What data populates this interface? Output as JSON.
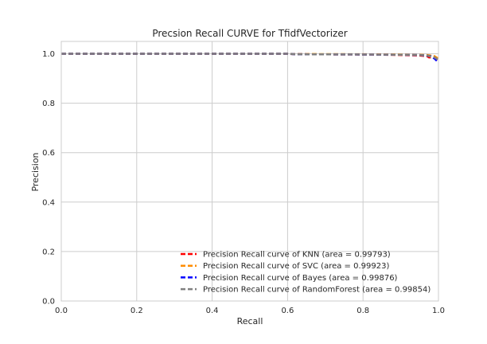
{
  "chart_data": {
    "type": "line",
    "title": "Precsion Recall CURVE for TfidfVectorizer",
    "xlabel": "Recall",
    "ylabel": "Precision",
    "xlim": [
      0.0,
      1.0
    ],
    "ylim": [
      0.0,
      1.05
    ],
    "xticks": [
      "0.0",
      "0.2",
      "0.4",
      "0.6",
      "0.8",
      "1.0"
    ],
    "yticks": [
      "0.0",
      "0.2",
      "0.4",
      "0.6",
      "0.8",
      "1.0"
    ],
    "grid": true,
    "legend_position": "lower-right",
    "series": [
      {
        "name": "Precision Recall curve of KNN (area = 0.99793)",
        "color": "#ff0000",
        "x": [
          0.0,
          0.2,
          0.4,
          0.6,
          0.62,
          0.8,
          0.9,
          0.95,
          0.97,
          0.975,
          0.98,
          0.99,
          1.0
        ],
        "y": [
          1.0,
          1.0,
          1.0,
          1.0,
          0.998,
          0.997,
          0.995,
          0.993,
          0.99,
          0.985,
          0.985,
          0.982,
          0.97
        ]
      },
      {
        "name": "Precision Recall curve of SVC (area = 0.99923)",
        "color": "#ff8c00",
        "x": [
          0.0,
          0.2,
          0.4,
          0.6,
          0.62,
          0.8,
          0.9,
          0.95,
          0.97,
          0.99,
          1.0
        ],
        "y": [
          1.0,
          1.0,
          1.0,
          1.0,
          0.999,
          0.998,
          0.997,
          0.996,
          0.995,
          0.99,
          0.98
        ]
      },
      {
        "name": "Precision Recall curve of Bayes (area = 0.99876)",
        "color": "#0000ff",
        "x": [
          0.0,
          0.2,
          0.4,
          0.6,
          0.62,
          0.8,
          0.9,
          0.95,
          0.97,
          0.98,
          0.99,
          1.0
        ],
        "y": [
          1.0,
          1.0,
          1.0,
          1.0,
          0.998,
          0.997,
          0.996,
          0.995,
          0.992,
          0.99,
          0.98,
          0.965
        ]
      },
      {
        "name": "Precision Recall curve of RandomForest (area = 0.99854)",
        "color": "#808080",
        "x": [
          0.0,
          0.2,
          0.4,
          0.6,
          0.62,
          0.8,
          0.9,
          0.95,
          0.97,
          0.99,
          1.0
        ],
        "y": [
          1.0,
          1.0,
          1.0,
          1.0,
          0.998,
          0.997,
          0.996,
          0.995,
          0.993,
          0.985,
          0.975
        ]
      }
    ]
  }
}
